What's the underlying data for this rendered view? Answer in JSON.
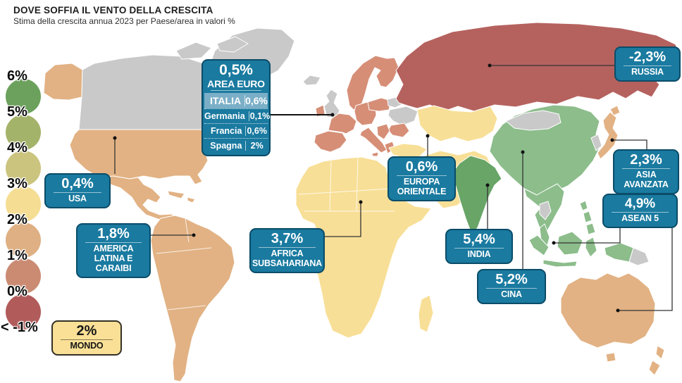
{
  "header": {
    "title": "DOVE SOFFIA IL VENTO DELLA CRESCITA",
    "subtitle": "Stima della crescita annua 2023 per Paese/area in valori %"
  },
  "legend": {
    "labels": [
      "6%",
      "5%",
      "4%",
      "3%",
      "2%",
      "1%",
      "0%",
      "< -1%"
    ],
    "circle_colors": [
      "#6ba15c",
      "#a4b36a",
      "#cbc47e",
      "#f5dd93",
      "#dfb083",
      "#cb8b73",
      "#b15b5a"
    ]
  },
  "callouts": {
    "usa": {
      "value": "0,4%",
      "label": "USA"
    },
    "america_latina": {
      "value": "1,8%",
      "label": "AMERICA LATINA E CARAIBI"
    },
    "africa_subsahariana": {
      "value": "3,7%",
      "label": "AFRICA SUBSAHARIANA"
    },
    "europa_orientale": {
      "value": "0,6%",
      "label": "EUROPA ORIENTALE"
    },
    "russia": {
      "value": "-2,3%",
      "label": "RUSSIA"
    },
    "india": {
      "value": "5,4%",
      "label": "INDIA"
    },
    "cina": {
      "value": "5,2%",
      "label": "CINA"
    },
    "asia_avanzata": {
      "value": "2,3%",
      "label": "ASIA AVANZATA"
    },
    "asean5": {
      "value": "4,9%",
      "label": "ASEAN 5"
    },
    "mondo": {
      "value": "2%",
      "label": "MONDO"
    }
  },
  "area_euro": {
    "value": "0,5%",
    "label": "AREA EURO",
    "rows": [
      {
        "name": "ITALIA",
        "value": "0,6%"
      },
      {
        "name": "Germania",
        "value": "0,1%"
      },
      {
        "name": "Francia",
        "value": "0,6%"
      },
      {
        "name": "Spagna",
        "value": "2%"
      }
    ]
  },
  "map_colors": {
    "gray": "#c9c9c9",
    "tan": "#e2b284",
    "yellow": "#f8df97",
    "salmon": "#d68e77",
    "red": "#b5625f",
    "green": "#8cbd8b",
    "darkgreen": "#68a567"
  },
  "accents": {
    "box_blue": "#1a7aa0",
    "box_blue_border": "#0b4c68",
    "box_highlight_row": "#7bafc7",
    "box_yellow": "#f9e096",
    "connector": "#333333"
  },
  "chart_data": {
    "type": "choropleth-map",
    "title": "DOVE SOFFIA IL VENTO DELLA CRESCITA",
    "subtitle": "Stima della crescita annua 2023 per Paese/area in valori %",
    "unit": "% annual growth",
    "legend_scale_labels": [
      "6%",
      "5%",
      "4%",
      "3%",
      "2%",
      "1%",
      "0%",
      "< -1%"
    ],
    "regions": [
      {
        "name": "AREA EURO",
        "value_pct": 0.5
      },
      {
        "name": "ITALIA",
        "value_pct": 0.6
      },
      {
        "name": "Germania",
        "value_pct": 0.1
      },
      {
        "name": "Francia",
        "value_pct": 0.6
      },
      {
        "name": "Spagna",
        "value_pct": 2
      },
      {
        "name": "USA",
        "value_pct": 0.4
      },
      {
        "name": "AMERICA LATINA E CARAIBI",
        "value_pct": 1.8
      },
      {
        "name": "AFRICA SUBSAHARIANA",
        "value_pct": 3.7
      },
      {
        "name": "EUROPA ORIENTALE",
        "value_pct": 0.6
      },
      {
        "name": "RUSSIA",
        "value_pct": -2.3
      },
      {
        "name": "INDIA",
        "value_pct": 5.4
      },
      {
        "name": "CINA",
        "value_pct": 5.2
      },
      {
        "name": "ASIA AVANZATA",
        "value_pct": 2.3
      },
      {
        "name": "ASEAN 5",
        "value_pct": 4.9
      },
      {
        "name": "MONDO",
        "value_pct": 2
      }
    ]
  }
}
